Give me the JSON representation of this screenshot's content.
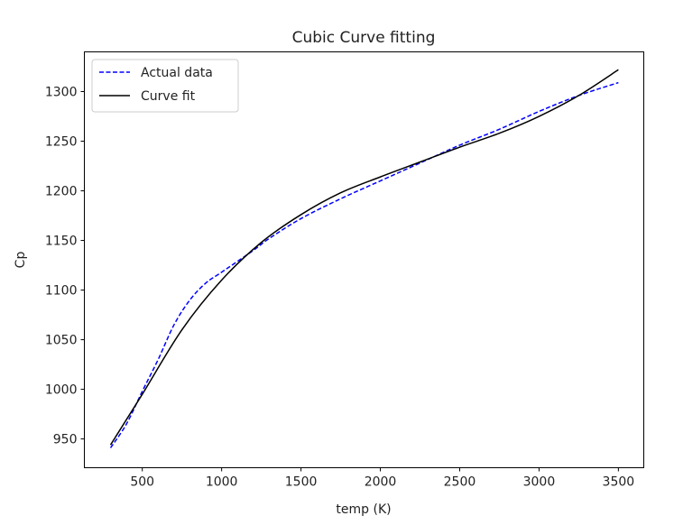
{
  "chart_data": {
    "type": "line",
    "title": "Cubic Curve fitting",
    "xlabel": "temp (K)",
    "ylabel": "Cp",
    "xlim": [
      135,
      3660
    ],
    "ylim": [
      921,
      1340
    ],
    "xticks": [
      500,
      1000,
      1500,
      2000,
      2500,
      3000,
      3500
    ],
    "yticks": [
      950,
      1000,
      1050,
      1100,
      1150,
      1200,
      1250,
      1300
    ],
    "grid": false,
    "legend": "top-left",
    "series": [
      {
        "name": "Actual data",
        "color": "#0000ff",
        "style": "dashed",
        "x": [
          300,
          400,
          500,
          600,
          700,
          800,
          900,
          1000,
          1200,
          1300,
          1500,
          1750,
          2000,
          2250,
          2500,
          2750,
          3000,
          3250,
          3500
        ],
        "y": [
          941,
          965,
          998,
          1030,
          1065,
          1090,
          1107,
          1118,
          1140,
          1152,
          1172,
          1192,
          1210,
          1228,
          1246,
          1262,
          1280,
          1296,
          1309
        ]
      },
      {
        "name": "Curve fit",
        "color": "#000000",
        "style": "solid",
        "x": [
          300,
          500,
          750,
          1000,
          1250,
          1500,
          1750,
          2000,
          2250,
          2500,
          2750,
          3000,
          3250,
          3500
        ],
        "y": [
          944,
          995,
          1060,
          1110,
          1148,
          1176,
          1198,
          1214,
          1229,
          1244,
          1258,
          1275,
          1296,
          1322
        ]
      }
    ]
  }
}
